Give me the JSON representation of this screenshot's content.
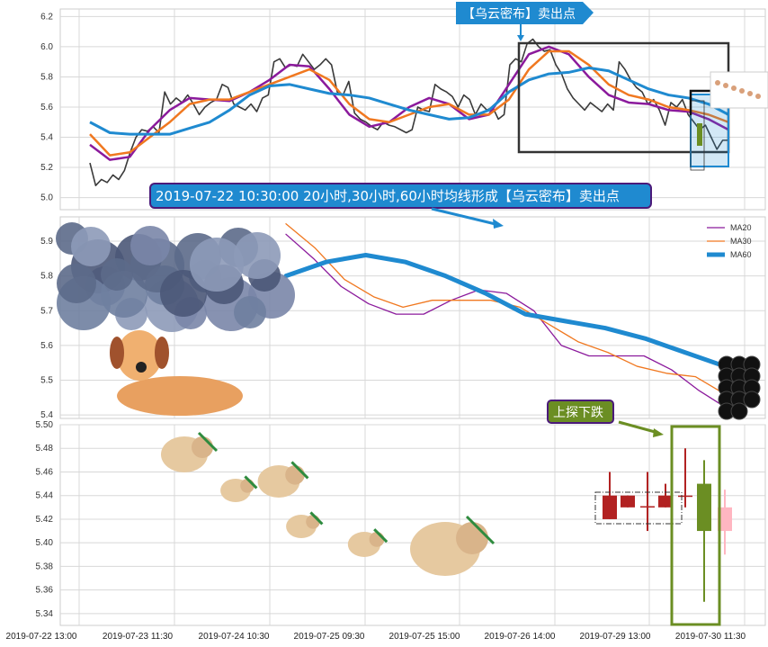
{
  "chart_data": [
    {
      "type": "line",
      "panel": "price",
      "ylim": [
        4.92,
        6.25
      ],
      "yticks": [
        "5.0",
        "5.2",
        "5.4",
        "5.6",
        "5.8",
        "6.0",
        "6.2"
      ],
      "grid": true,
      "series": [
        {
          "role": "close",
          "color": "#3a3a3a",
          "values": [
            5.23,
            5.08,
            5.12,
            5.1,
            5.15,
            5.12,
            5.18,
            5.3,
            5.4,
            5.45,
            5.44,
            5.47,
            5.43,
            5.7,
            5.62,
            5.66,
            5.63,
            5.68,
            5.62,
            5.55,
            5.6,
            5.63,
            5.65,
            5.75,
            5.73,
            5.62,
            5.6,
            5.58,
            5.62,
            5.57,
            5.66,
            5.68,
            5.9,
            5.92,
            5.86,
            5.88,
            5.87,
            5.95,
            5.9,
            5.85,
            5.88,
            5.92,
            5.88,
            5.7,
            5.68,
            5.77,
            5.56,
            5.52,
            5.5,
            5.47,
            5.45,
            5.5,
            5.48,
            5.47,
            5.45,
            5.43,
            5.45,
            5.6,
            5.58,
            5.57,
            5.75,
            5.72,
            5.7,
            5.67,
            5.6,
            5.68,
            5.65,
            5.55,
            5.62,
            5.58,
            5.6,
            5.52,
            5.55,
            5.88,
            5.92,
            5.9,
            6.02,
            6.05,
            6.0,
            5.97,
            5.98,
            5.88,
            5.82,
            5.72,
            5.66,
            5.62,
            5.58,
            5.63,
            5.6,
            5.57,
            5.62,
            5.58,
            5.9,
            5.85,
            5.78,
            5.73,
            5.7,
            5.62,
            5.65,
            5.58,
            5.48,
            5.63,
            5.6,
            5.65,
            5.55,
            5.5,
            5.45,
            5.48,
            5.4,
            5.32,
            5.38,
            5.38
          ]
        },
        {
          "name": "MA20",
          "color": "#8b1a9c",
          "values": [
            5.35,
            5.25,
            5.27,
            5.45,
            5.58,
            5.66,
            5.65,
            5.64,
            5.7,
            5.78,
            5.88,
            5.87,
            5.72,
            5.55,
            5.47,
            5.5,
            5.6,
            5.66,
            5.62,
            5.52,
            5.55,
            5.75,
            5.95,
            6.0,
            5.95,
            5.8,
            5.68,
            5.63,
            5.62,
            5.58,
            5.57,
            5.52,
            5.45
          ]
        },
        {
          "name": "MA30",
          "color": "#f07820",
          "values": [
            5.42,
            5.28,
            5.3,
            5.4,
            5.5,
            5.62,
            5.65,
            5.65,
            5.7,
            5.75,
            5.8,
            5.85,
            5.78,
            5.62,
            5.52,
            5.5,
            5.55,
            5.6,
            5.62,
            5.55,
            5.55,
            5.65,
            5.85,
            5.97,
            5.97,
            5.88,
            5.75,
            5.68,
            5.65,
            5.6,
            5.58,
            5.55,
            5.5
          ]
        },
        {
          "name": "MA60",
          "color": "#1f8ad0",
          "values": [
            5.5,
            5.43,
            5.42,
            5.42,
            5.42,
            5.46,
            5.5,
            5.58,
            5.68,
            5.74,
            5.75,
            5.72,
            5.69,
            5.68,
            5.66,
            5.62,
            5.58,
            5.55,
            5.52,
            5.53,
            5.58,
            5.7,
            5.78,
            5.82,
            5.83,
            5.86,
            5.84,
            5.78,
            5.72,
            5.68,
            5.66,
            5.62,
            5.55
          ]
        }
      ],
      "annotations": [
        "【乌云密布】卖出点",
        "2019-07-22 10:30:00 20小时,30小时,60小时均线形成【乌云密布】卖出点"
      ]
    },
    {
      "type": "line",
      "panel": "moving-averages",
      "ylim": [
        5.39,
        5.97
      ],
      "yticks": [
        "5.4",
        "5.5",
        "5.6",
        "5.7",
        "5.8",
        "5.9"
      ],
      "grid": true,
      "legend": "top-right",
      "series": [
        {
          "name": "MA20",
          "color": "#8b1a9c",
          "values": [
            5.92,
            5.85,
            5.77,
            5.72,
            5.69,
            5.69,
            5.73,
            5.76,
            5.75,
            5.7,
            5.6,
            5.57,
            5.57,
            5.57,
            5.53,
            5.47,
            5.42
          ]
        },
        {
          "name": "MA30",
          "color": "#f07820",
          "values": [
            5.95,
            5.88,
            5.79,
            5.74,
            5.71,
            5.73,
            5.73,
            5.73,
            5.71,
            5.66,
            5.61,
            5.58,
            5.54,
            5.52,
            5.51,
            5.46
          ]
        },
        {
          "name": "MA60",
          "color": "#1f8ad0",
          "values": [
            5.8,
            5.84,
            5.86,
            5.84,
            5.8,
            5.75,
            5.69,
            5.67,
            5.65,
            5.62,
            5.58,
            5.54
          ]
        }
      ]
    },
    {
      "type": "candlestick",
      "panel": "candles",
      "ylim": [
        5.33,
        5.5
      ],
      "yticks": [
        "5.34",
        "5.36",
        "5.38",
        "5.40",
        "5.42",
        "5.44",
        "5.46",
        "5.48",
        "5.50"
      ],
      "xticks": [
        "2019-07-22 13:00",
        "2019-07-23 11:30",
        "2019-07-24 10:30",
        "2019-07-25 09:30",
        "2019-07-25 15:00",
        "2019-07-26 14:00",
        "2019-07-29 13:00",
        "2019-07-30 11:30"
      ],
      "grid": true,
      "candles": [
        {
          "open": 5.44,
          "close": 5.42,
          "high": 5.46,
          "low": 5.42,
          "color": "#b22222"
        },
        {
          "open": 5.44,
          "close": 5.43,
          "high": 5.44,
          "low": 5.43,
          "color": "#b22222"
        },
        {
          "open": 5.431,
          "close": 5.431,
          "high": 5.46,
          "low": 5.41,
          "color": "#b22222"
        },
        {
          "open": 5.44,
          "close": 5.43,
          "high": 5.45,
          "low": 5.43,
          "color": "#b22222"
        },
        {
          "open": 5.44,
          "close": 5.44,
          "high": 5.48,
          "low": 5.43,
          "color": "#b22222"
        },
        {
          "open": 5.45,
          "close": 5.41,
          "high": 5.47,
          "low": 5.35,
          "color": "#6b8e23"
        },
        {
          "open": 5.43,
          "close": 5.41,
          "high": 5.445,
          "low": 5.39,
          "color": "#ffb6c1"
        }
      ],
      "annotations": [
        "上探下跌"
      ]
    }
  ]
}
